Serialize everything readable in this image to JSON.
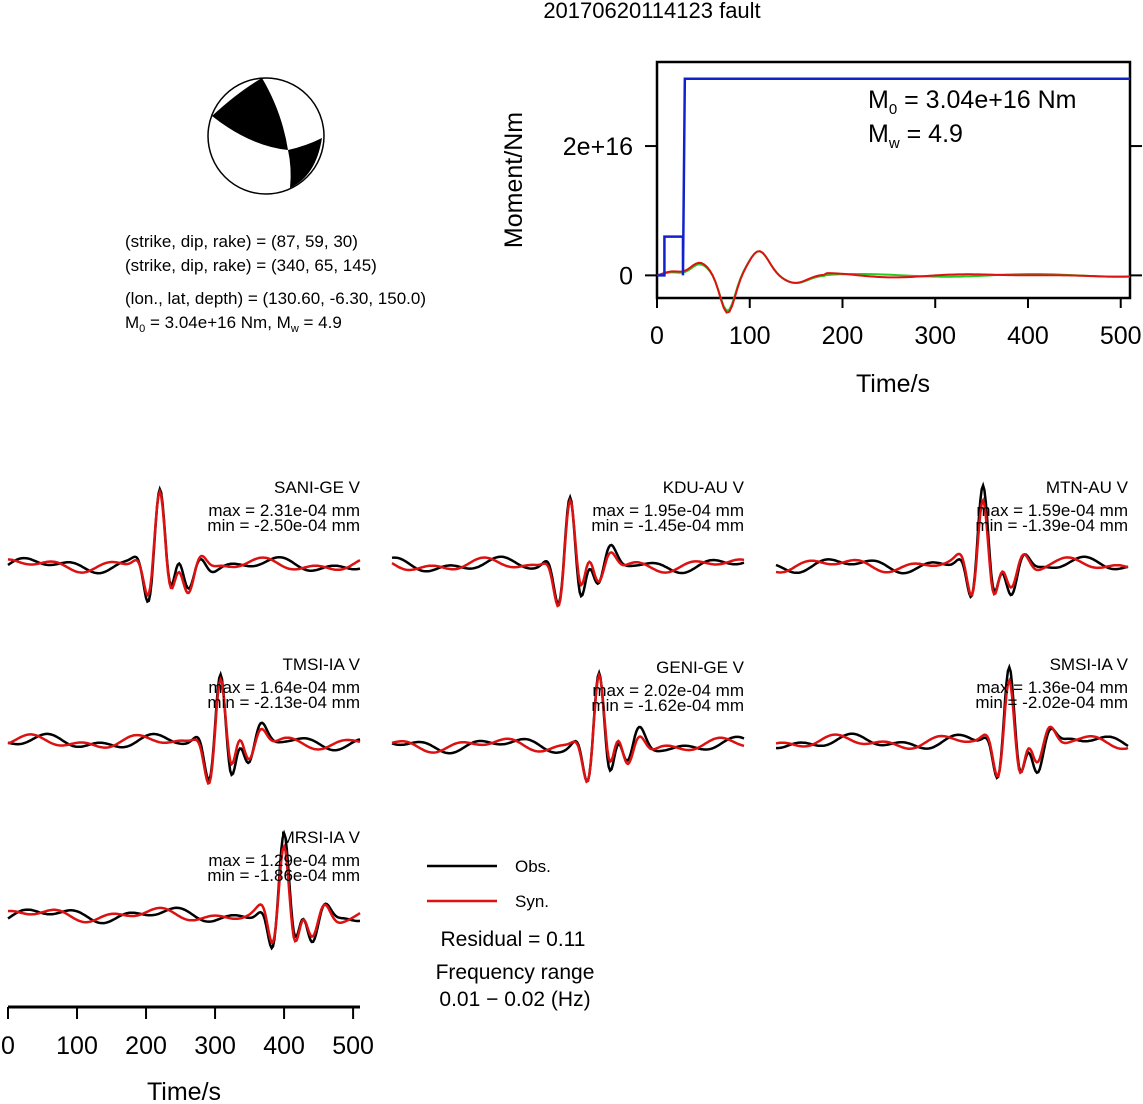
{
  "title": "20170620114123 fault",
  "mechanism": {
    "line1": "(strike, dip, rake) = (87, 59, 30)",
    "line2": "(strike, dip, rake) = (340, 65, 145)",
    "line3": "(lon., lat, depth) = (130.60, -6.30, 150.0)",
    "m0_prefix": "M",
    "m0_sub": "0",
    "m0_value": " = 3.04e+16 Nm, M",
    "mw_sub": "w",
    "mw_value": " = 4.9"
  },
  "moment_chart": {
    "ylabel": "Moment/Nm",
    "xlabel": "Time/s",
    "xticks": [
      "0",
      "100",
      "200",
      "300",
      "400",
      "500"
    ],
    "yticks": [
      "0",
      "2e+16"
    ],
    "m0_label_prefix": "M",
    "m0_label_sub": "0",
    "m0_label_value": " = 3.04e+16 Nm",
    "mw_label_prefix": "M",
    "mw_label_sub": "w",
    "mw_label_value": " = 4.9"
  },
  "stations": [
    {
      "name": "SANI-GE V",
      "max": "max = 2.31e-04 mm",
      "min": "min = -2.50e-04 mm"
    },
    {
      "name": "KDU-AU V",
      "max": "max = 1.95e-04 mm",
      "min": "min = -1.45e-04 mm"
    },
    {
      "name": "MTN-AU V",
      "max": "max = 1.59e-04 mm",
      "min": "min = -1.39e-04 mm"
    },
    {
      "name": "TMSI-IA V",
      "max": "max = 1.64e-04 mm",
      "min": "min = -2.13e-04 mm"
    },
    {
      "name": "GENI-GE V",
      "max": "max = 2.02e-04 mm",
      "min": "min = -1.62e-04 mm"
    },
    {
      "name": "SMSI-IA V",
      "max": "max = 1.36e-04 mm",
      "min": "min = -2.02e-04 mm"
    },
    {
      "name": "MRSI-IA V",
      "max": "max = 1.29e-04 mm",
      "min": "min = -1.86e-04 mm"
    }
  ],
  "legend": {
    "obs": "Obs.",
    "syn": "Syn."
  },
  "residual": "Residual = 0.11",
  "freq_label": "Frequency range",
  "freq_value": "0.01 − 0.02 (Hz)",
  "bottom_axis": {
    "xlabel": "Time/s",
    "xticks": [
      "0",
      "100",
      "200",
      "300",
      "400",
      "500"
    ]
  },
  "colors": {
    "obs": "#000000",
    "syn": "#dd1111",
    "moment": "#1122cc",
    "moment_syn": "#22cc22"
  },
  "chart_data": [
    {
      "type": "line",
      "x_unit": "s",
      "xlim": [
        0,
        510
      ],
      "ylim": [
        -3500000000000000.0,
        3.3e+16
      ],
      "series": [
        {
          "x": [
            0,
            8,
            8,
            28,
            28,
            30,
            510
          ],
          "y": [
            0,
            0,
            6000000000000000.0,
            6000000000000000.0,
            0,
            3.04e+16,
            3.04e+16
          ]
        }
      ]
    }
  ]
}
